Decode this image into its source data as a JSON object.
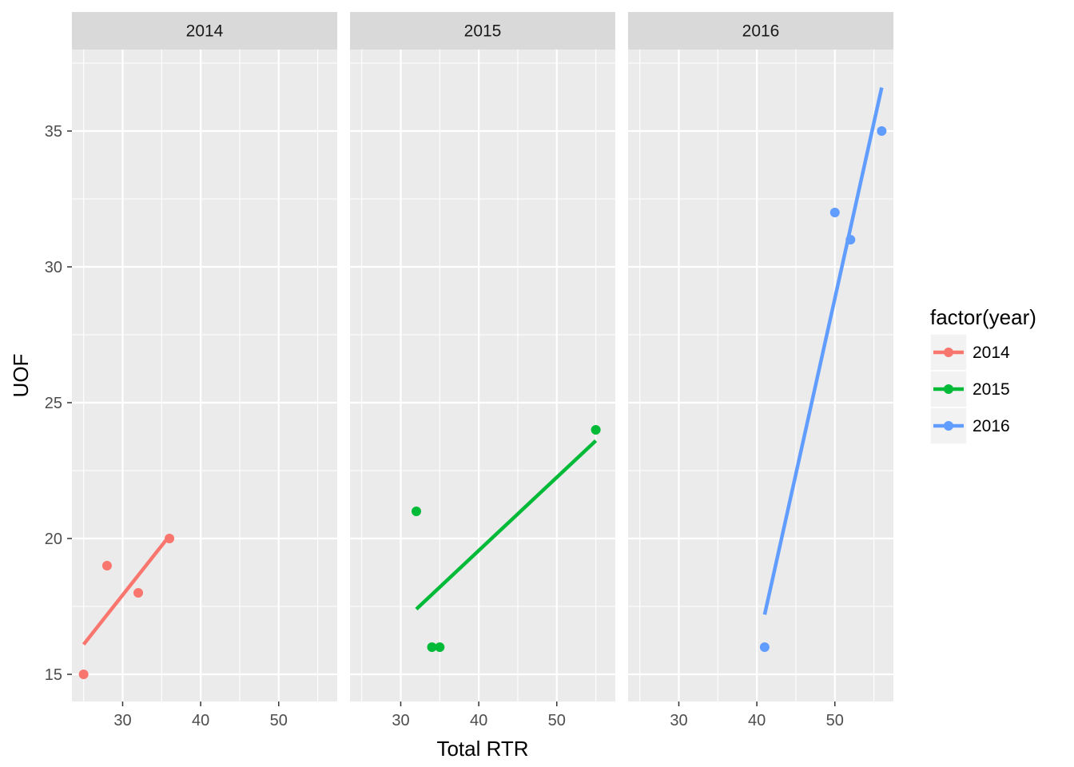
{
  "chart_data": {
    "type": "scatter",
    "facet_by": "year",
    "facets": [
      "2014",
      "2015",
      "2016"
    ],
    "xlabel": "Total RTR",
    "ylabel": "UOF",
    "xlim": [
      23.5,
      57.5
    ],
    "ylim": [
      14,
      38
    ],
    "x_ticks": [
      30,
      40,
      50
    ],
    "y_ticks": [
      15,
      20,
      25,
      30,
      35
    ],
    "grid": true,
    "legend": {
      "title": "factor(year)",
      "position": "right",
      "entries": [
        "2014",
        "2015",
        "2016"
      ]
    },
    "series": [
      {
        "name": "2014",
        "color": "#F8766D",
        "points": [
          {
            "x": 25,
            "y": 15
          },
          {
            "x": 28,
            "y": 19
          },
          {
            "x": 32,
            "y": 18
          },
          {
            "x": 36,
            "y": 20
          }
        ],
        "fit_line": [
          {
            "x": 25,
            "y": 16.1
          },
          {
            "x": 36,
            "y": 20.1
          }
        ]
      },
      {
        "name": "2015",
        "color": "#00BA38",
        "points": [
          {
            "x": 32,
            "y": 21
          },
          {
            "x": 34,
            "y": 16
          },
          {
            "x": 35,
            "y": 16
          },
          {
            "x": 55,
            "y": 24
          }
        ],
        "fit_line": [
          {
            "x": 32,
            "y": 17.4
          },
          {
            "x": 55,
            "y": 23.6
          }
        ]
      },
      {
        "name": "2016",
        "color": "#619CFF",
        "points": [
          {
            "x": 41,
            "y": 16
          },
          {
            "x": 50,
            "y": 32
          },
          {
            "x": 52,
            "y": 31
          },
          {
            "x": 56,
            "y": 35
          }
        ],
        "fit_line": [
          {
            "x": 41,
            "y": 17.2
          },
          {
            "x": 56,
            "y": 36.6
          }
        ]
      }
    ]
  }
}
